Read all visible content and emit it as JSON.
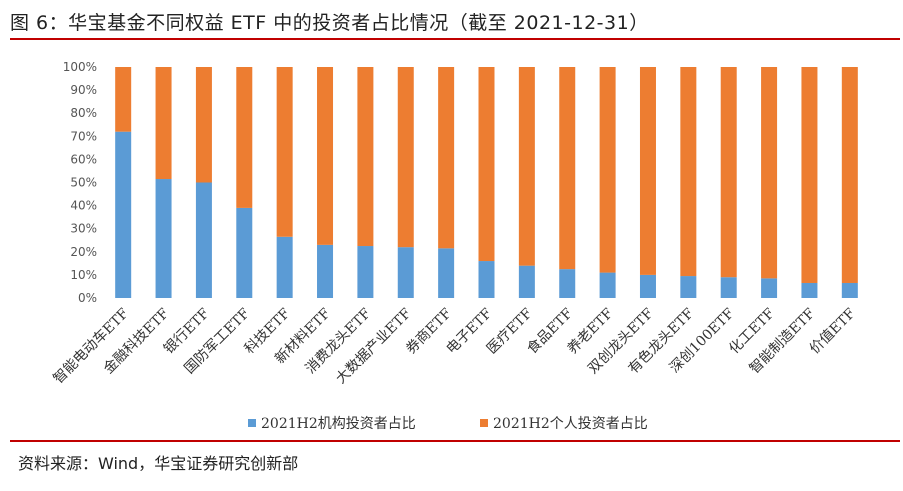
{
  "header": {
    "title": "图 6：华宝基金不同权益 ETF 中的投资者占比情况（截至 2021-12-31）"
  },
  "footer": {
    "source": "资料来源：Wind，华宝证券研究创新部"
  },
  "colors": {
    "accent_rule": "#c00000",
    "series_institutional": "#5b9bd5",
    "series_individual": "#ed7d31"
  },
  "chart_data": {
    "type": "bar",
    "stacked": true,
    "percent": true,
    "categories": [
      "智能电动车ETF",
      "金融科技ETF",
      "银行ETF",
      "国防军工ETF",
      "科技ETF",
      "新材料ETF",
      "消费龙头ETF",
      "大数据产业ETF",
      "券商ETF",
      "电子ETF",
      "医疗ETF",
      "食品ETF",
      "养老ETF",
      "双创龙头ETF",
      "有色龙头ETF",
      "深创100ETF",
      "化工ETF",
      "智能制造ETF",
      "价值ETF"
    ],
    "series": [
      {
        "name": "2021H2机构投资者占比",
        "values": [
          72,
          51.5,
          50,
          39,
          26.5,
          23,
          22.5,
          22,
          21.5,
          16,
          14,
          12.5,
          11,
          10,
          9.5,
          9,
          8.5,
          6.5,
          6.5
        ]
      },
      {
        "name": "2021H2个人投资者占比",
        "values": [
          28,
          48.5,
          50,
          61,
          73.5,
          77,
          77.5,
          78,
          78.5,
          84,
          86,
          87.5,
          89,
          90,
          90.5,
          91,
          91.5,
          93.5,
          93.5
        ]
      }
    ],
    "yticks": [
      "0%",
      "10%",
      "20%",
      "30%",
      "40%",
      "50%",
      "60%",
      "70%",
      "80%",
      "90%",
      "100%"
    ],
    "ylim": [
      0,
      100
    ],
    "grid": false,
    "legend": "bottom"
  }
}
